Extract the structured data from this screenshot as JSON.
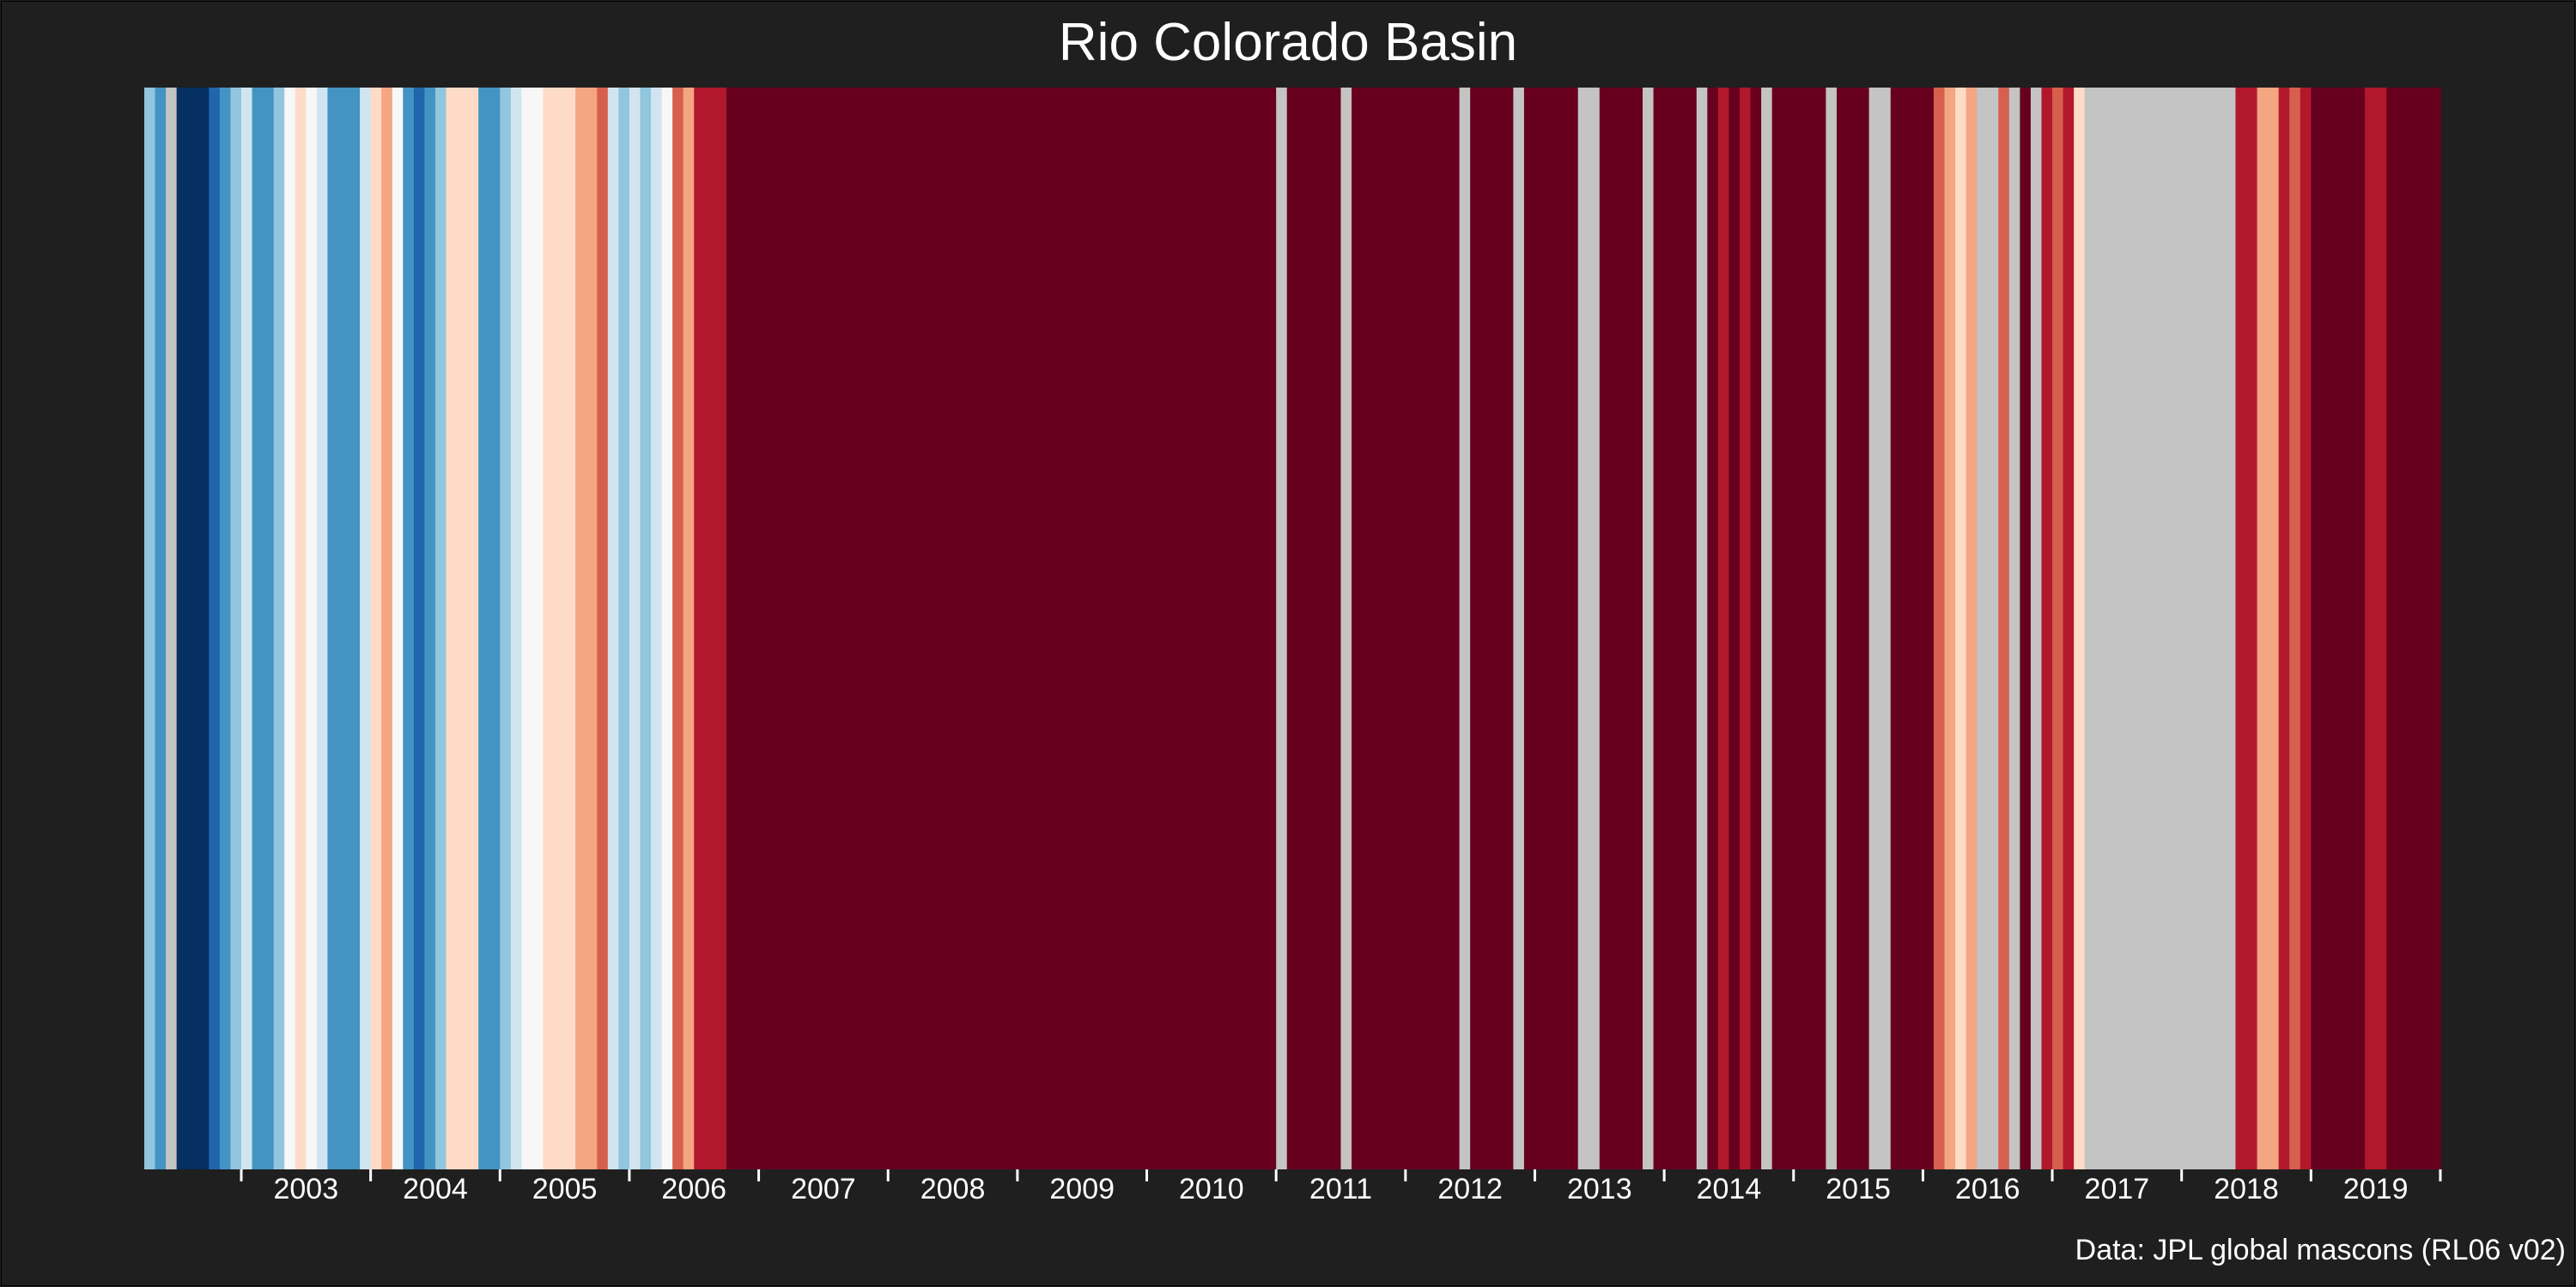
{
  "chart_data": {
    "type": "heatmap",
    "title": "Rio Colorado Basin",
    "caption": "Data: JPL global mascons (RL06 v02)",
    "xlabel": "",
    "ylabel": "",
    "x_tick_labels": [
      "2003",
      "2004",
      "2005",
      "2006",
      "2007",
      "2008",
      "2009",
      "2010",
      "2011",
      "2012",
      "2013",
      "2014",
      "2015",
      "2016",
      "2017",
      "2018",
      "2019"
    ],
    "x_range": [
      "2002-04",
      "2020-01"
    ],
    "grid": false,
    "legend": "none",
    "colors": {
      "background": "#1f1f1f",
      "missing": "#c4c4c4",
      "text": "#ffffff",
      "scale": [
        "#053061",
        "#2166ac",
        "#4393c3",
        "#92c5de",
        "#d1e5f0",
        "#f7f7f7",
        "#fddbc7",
        "#f4a582",
        "#d6604d",
        "#b2182b",
        "#67001f"
      ]
    },
    "color_scale_levels": "0 = strongest blue ... 10 = strongest red, null = missing month",
    "stripes": [
      {
        "month": "2002-04",
        "level": 3
      },
      {
        "month": "2002-05",
        "level": 2
      },
      {
        "month": "2002-06",
        "level": null
      },
      {
        "month": "2002-07",
        "level": 0
      },
      {
        "month": "2002-08",
        "level": 0
      },
      {
        "month": "2002-09",
        "level": 0
      },
      {
        "month": "2002-10",
        "level": 1
      },
      {
        "month": "2002-11",
        "level": 2
      },
      {
        "month": "2002-12",
        "level": 3
      },
      {
        "month": "2003-01",
        "level": 4
      },
      {
        "month": "2003-02",
        "level": 2
      },
      {
        "month": "2003-03",
        "level": 2
      },
      {
        "month": "2003-04",
        "level": 3
      },
      {
        "month": "2003-05",
        "level": 5
      },
      {
        "month": "2003-06",
        "level": 6
      },
      {
        "month": "2003-07",
        "level": 5
      },
      {
        "month": "2003-08",
        "level": 4
      },
      {
        "month": "2003-09",
        "level": 2
      },
      {
        "month": "2003-10",
        "level": 2
      },
      {
        "month": "2003-11",
        "level": 2
      },
      {
        "month": "2003-12",
        "level": 4
      },
      {
        "month": "2004-01",
        "level": 6
      },
      {
        "month": "2004-02",
        "level": 7
      },
      {
        "month": "2004-03",
        "level": 5
      },
      {
        "month": "2004-04",
        "level": 2
      },
      {
        "month": "2004-05",
        "level": 1
      },
      {
        "month": "2004-06",
        "level": 2
      },
      {
        "month": "2004-07",
        "level": 3
      },
      {
        "month": "2004-08",
        "level": 6
      },
      {
        "month": "2004-09",
        "level": 6
      },
      {
        "month": "2004-10",
        "level": 6
      },
      {
        "month": "2004-11",
        "level": 2
      },
      {
        "month": "2004-12",
        "level": 2
      },
      {
        "month": "2005-01",
        "level": 3
      },
      {
        "month": "2005-02",
        "level": 4
      },
      {
        "month": "2005-03",
        "level": 5
      },
      {
        "month": "2005-04",
        "level": 5
      },
      {
        "month": "2005-05",
        "level": 6
      },
      {
        "month": "2005-06",
        "level": 6
      },
      {
        "month": "2005-07",
        "level": 6
      },
      {
        "month": "2005-08",
        "level": 7
      },
      {
        "month": "2005-09",
        "level": 7
      },
      {
        "month": "2005-10",
        "level": 8
      },
      {
        "month": "2005-11",
        "level": 4
      },
      {
        "month": "2005-12",
        "level": 3
      },
      {
        "month": "2006-01",
        "level": 4
      },
      {
        "month": "2006-02",
        "level": 3
      },
      {
        "month": "2006-03",
        "level": 4
      },
      {
        "month": "2006-04",
        "level": 5
      },
      {
        "month": "2006-05",
        "level": 8
      },
      {
        "month": "2006-06",
        "level": 7
      },
      {
        "month": "2006-07",
        "level": 9
      },
      {
        "month": "2006-08",
        "level": 9
      },
      {
        "month": "2006-09",
        "level": 9
      },
      {
        "month": "2006-10",
        "level": 10
      },
      {
        "month": "2006-11",
        "level": 10
      },
      {
        "month": "2006-12",
        "level": 10
      },
      {
        "month": "2007-01",
        "level": 10
      },
      {
        "month": "2007-02",
        "level": 10
      },
      {
        "month": "2007-03",
        "level": 10
      },
      {
        "month": "2007-04",
        "level": 10
      },
      {
        "month": "2007-05",
        "level": 10
      },
      {
        "month": "2007-06",
        "level": 10
      },
      {
        "month": "2007-07",
        "level": 10
      },
      {
        "month": "2007-08",
        "level": 10
      },
      {
        "month": "2007-09",
        "level": 10
      },
      {
        "month": "2007-10",
        "level": 10
      },
      {
        "month": "2007-11",
        "level": 10
      },
      {
        "month": "2007-12",
        "level": 10
      },
      {
        "month": "2008-01",
        "level": 10
      },
      {
        "month": "2008-02",
        "level": 10
      },
      {
        "month": "2008-03",
        "level": 10
      },
      {
        "month": "2008-04",
        "level": 10
      },
      {
        "month": "2008-05",
        "level": 10
      },
      {
        "month": "2008-06",
        "level": 10
      },
      {
        "month": "2008-07",
        "level": 10
      },
      {
        "month": "2008-08",
        "level": 10
      },
      {
        "month": "2008-09",
        "level": 10
      },
      {
        "month": "2008-10",
        "level": 10
      },
      {
        "month": "2008-11",
        "level": 10
      },
      {
        "month": "2008-12",
        "level": 10
      },
      {
        "month": "2009-01",
        "level": 10
      },
      {
        "month": "2009-02",
        "level": 10
      },
      {
        "month": "2009-03",
        "level": 10
      },
      {
        "month": "2009-04",
        "level": 10
      },
      {
        "month": "2009-05",
        "level": 10
      },
      {
        "month": "2009-06",
        "level": 10
      },
      {
        "month": "2009-07",
        "level": 10
      },
      {
        "month": "2009-08",
        "level": 10
      },
      {
        "month": "2009-09",
        "level": 10
      },
      {
        "month": "2009-10",
        "level": 10
      },
      {
        "month": "2009-11",
        "level": 10
      },
      {
        "month": "2009-12",
        "level": 10
      },
      {
        "month": "2010-01",
        "level": 10
      },
      {
        "month": "2010-02",
        "level": 10
      },
      {
        "month": "2010-03",
        "level": 10
      },
      {
        "month": "2010-04",
        "level": 10
      },
      {
        "month": "2010-05",
        "level": 10
      },
      {
        "month": "2010-06",
        "level": 10
      },
      {
        "month": "2010-07",
        "level": 10
      },
      {
        "month": "2010-08",
        "level": 10
      },
      {
        "month": "2010-09",
        "level": 10
      },
      {
        "month": "2010-10",
        "level": 10
      },
      {
        "month": "2010-11",
        "level": 10
      },
      {
        "month": "2010-12",
        "level": 10
      },
      {
        "month": "2011-01",
        "level": null
      },
      {
        "month": "2011-02",
        "level": 10
      },
      {
        "month": "2011-03",
        "level": 10
      },
      {
        "month": "2011-04",
        "level": 10
      },
      {
        "month": "2011-05",
        "level": 10
      },
      {
        "month": "2011-06",
        "level": 10
      },
      {
        "month": "2011-07",
        "level": null
      },
      {
        "month": "2011-08",
        "level": 10
      },
      {
        "month": "2011-09",
        "level": 10
      },
      {
        "month": "2011-10",
        "level": 10
      },
      {
        "month": "2011-11",
        "level": 10
      },
      {
        "month": "2011-12",
        "level": 10
      },
      {
        "month": "2012-01",
        "level": 10
      },
      {
        "month": "2012-02",
        "level": 10
      },
      {
        "month": "2012-03",
        "level": 10
      },
      {
        "month": "2012-04",
        "level": 10
      },
      {
        "month": "2012-05",
        "level": 10
      },
      {
        "month": "2012-06",
        "level": null
      },
      {
        "month": "2012-07",
        "level": 10
      },
      {
        "month": "2012-08",
        "level": 10
      },
      {
        "month": "2012-09",
        "level": 10
      },
      {
        "month": "2012-10",
        "level": 10
      },
      {
        "month": "2012-11",
        "level": null
      },
      {
        "month": "2012-12",
        "level": 10
      },
      {
        "month": "2013-01",
        "level": 10
      },
      {
        "month": "2013-02",
        "level": 10
      },
      {
        "month": "2013-03",
        "level": 10
      },
      {
        "month": "2013-04",
        "level": 10
      },
      {
        "month": "2013-05",
        "level": null
      },
      {
        "month": "2013-06",
        "level": null
      },
      {
        "month": "2013-07",
        "level": 10
      },
      {
        "month": "2013-08",
        "level": 10
      },
      {
        "month": "2013-09",
        "level": 10
      },
      {
        "month": "2013-10",
        "level": 10
      },
      {
        "month": "2013-11",
        "level": null
      },
      {
        "month": "2013-12",
        "level": 10
      },
      {
        "month": "2014-01",
        "level": 10
      },
      {
        "month": "2014-02",
        "level": 10
      },
      {
        "month": "2014-03",
        "level": 10
      },
      {
        "month": "2014-04",
        "level": null
      },
      {
        "month": "2014-05",
        "level": 10
      },
      {
        "month": "2014-06",
        "level": 9
      },
      {
        "month": "2014-07",
        "level": 10
      },
      {
        "month": "2014-08",
        "level": 9
      },
      {
        "month": "2014-09",
        "level": 10
      },
      {
        "month": "2014-10",
        "level": null
      },
      {
        "month": "2014-11",
        "level": 10
      },
      {
        "month": "2014-12",
        "level": 10
      },
      {
        "month": "2015-01",
        "level": 10
      },
      {
        "month": "2015-02",
        "level": 10
      },
      {
        "month": "2015-03",
        "level": 10
      },
      {
        "month": "2015-04",
        "level": null
      },
      {
        "month": "2015-05",
        "level": 10
      },
      {
        "month": "2015-06",
        "level": 10
      },
      {
        "month": "2015-07",
        "level": 10
      },
      {
        "month": "2015-08",
        "level": null
      },
      {
        "month": "2015-09",
        "level": null
      },
      {
        "month": "2015-10",
        "level": 10
      },
      {
        "month": "2015-11",
        "level": 10
      },
      {
        "month": "2015-12",
        "level": 10
      },
      {
        "month": "2016-01",
        "level": 10
      },
      {
        "month": "2016-02",
        "level": 8
      },
      {
        "month": "2016-03",
        "level": 7
      },
      {
        "month": "2016-04",
        "level": 6
      },
      {
        "month": "2016-05",
        "level": 7
      },
      {
        "month": "2016-06",
        "level": null
      },
      {
        "month": "2016-07",
        "level": null
      },
      {
        "month": "2016-08",
        "level": 8
      },
      {
        "month": "2016-09",
        "level": null
      },
      {
        "month": "2016-10",
        "level": 10
      },
      {
        "month": "2016-11",
        "level": null
      },
      {
        "month": "2016-12",
        "level": 9
      },
      {
        "month": "2017-01",
        "level": 8
      },
      {
        "month": "2017-02",
        "level": 9
      },
      {
        "month": "2017-03",
        "level": 6
      },
      {
        "month": "2017-04",
        "level": null
      },
      {
        "month": "2017-05",
        "level": null
      },
      {
        "month": "2017-06",
        "level": null
      },
      {
        "month": "2017-07",
        "level": null
      },
      {
        "month": "2017-08",
        "level": null
      },
      {
        "month": "2017-09",
        "level": null
      },
      {
        "month": "2017-10",
        "level": null
      },
      {
        "month": "2017-11",
        "level": null
      },
      {
        "month": "2017-12",
        "level": null
      },
      {
        "month": "2018-01",
        "level": null
      },
      {
        "month": "2018-02",
        "level": null
      },
      {
        "month": "2018-03",
        "level": null
      },
      {
        "month": "2018-04",
        "level": null
      },
      {
        "month": "2018-05",
        "level": null
      },
      {
        "month": "2018-06",
        "level": 9
      },
      {
        "month": "2018-07",
        "level": 9
      },
      {
        "month": "2018-08",
        "level": 7
      },
      {
        "month": "2018-09",
        "level": 7
      },
      {
        "month": "2018-10",
        "level": 9
      },
      {
        "month": "2018-11",
        "level": 8
      },
      {
        "month": "2018-12",
        "level": 9
      },
      {
        "month": "2019-01",
        "level": 10
      },
      {
        "month": "2019-02",
        "level": 10
      },
      {
        "month": "2019-03",
        "level": 10
      },
      {
        "month": "2019-04",
        "level": 10
      },
      {
        "month": "2019-05",
        "level": 10
      },
      {
        "month": "2019-06",
        "level": 9
      },
      {
        "month": "2019-07",
        "level": 9
      },
      {
        "month": "2019-08",
        "level": 10
      },
      {
        "month": "2019-09",
        "level": 10
      },
      {
        "month": "2019-10",
        "level": 10
      },
      {
        "month": "2019-11",
        "level": 10
      },
      {
        "month": "2019-12",
        "level": 10
      }
    ]
  }
}
